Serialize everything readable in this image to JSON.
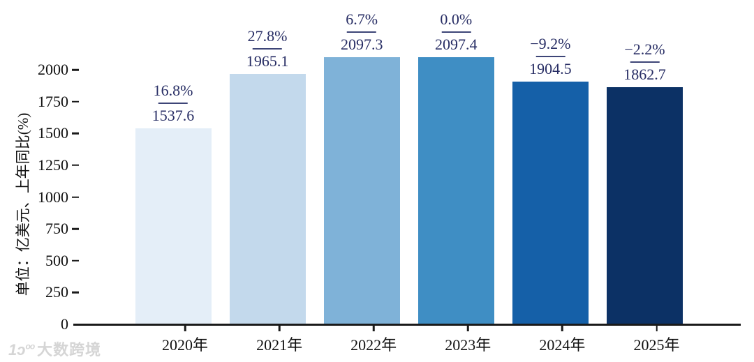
{
  "chart_data": {
    "type": "bar",
    "title": "",
    "categories": [
      "2020年",
      "2021年",
      "2022年",
      "2023年",
      "2024年",
      "2025年"
    ],
    "values": [
      1537.6,
      1965.1,
      2097.3,
      2097.4,
      1904.5,
      1862.7
    ],
    "value_labels": [
      "1537.6",
      "1965.1",
      "2097.3",
      "2097.4",
      "1904.5",
      "1862.7"
    ],
    "yoy_percent_labels": [
      "16.8%",
      "27.8%",
      "6.7%",
      "0.0%",
      "−9.2%",
      "−2.2%"
    ],
    "ylabel": "单位：亿美元、上年同比(%)",
    "xlabel": "",
    "yticks": [
      0,
      250,
      500,
      750,
      1000,
      1250,
      1500,
      1750,
      2000
    ],
    "ylim": [
      0,
      2200
    ],
    "grid": false,
    "legend": null,
    "bar_colors": [
      "#e4eef8",
      "#c3d9ec",
      "#7fb2d8",
      "#3f8ec4",
      "#1560a8",
      "#0c3165"
    ],
    "annotation_text_color": "#272d64",
    "annotation_line_color": "#3d4577",
    "axis_color": "#1a1a1a"
  },
  "watermark": {
    "logo_main": "1ɔ",
    "logo_sup": "oo",
    "text": "大数跨境"
  }
}
